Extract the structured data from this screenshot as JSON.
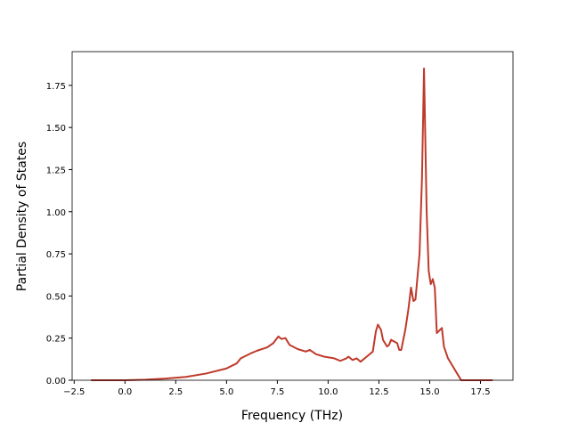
{
  "chart_data": {
    "type": "line",
    "xlabel": "Frequency (THz)",
    "ylabel": "Partial Density of States",
    "x": [
      -1.67,
      0,
      1,
      2,
      3,
      4,
      5,
      5.5,
      5.7,
      6.2,
      6.5,
      7,
      7.3,
      7.55,
      7.7,
      7.9,
      8.1,
      8.5,
      8.9,
      9.1,
      9.4,
      9.8,
      10.3,
      10.6,
      10.9,
      11.0,
      11.2,
      11.4,
      11.6,
      11.9,
      12.2,
      12.35,
      12.45,
      12.6,
      12.7,
      12.9,
      13.0,
      13.1,
      13.4,
      13.5,
      13.6,
      13.8,
      13.95,
      14.08,
      14.2,
      14.3,
      14.5,
      14.62,
      14.72,
      14.85,
      14.95,
      15.05,
      15.15,
      15.25,
      15.35,
      15.6,
      15.7,
      15.9,
      16.2,
      16.4,
      16.55,
      18.1
    ],
    "series": [
      {
        "color": "#bf3a2b",
        "values": [
          0,
          0,
          0.003,
          0.01,
          0.02,
          0.04,
          0.07,
          0.1,
          0.13,
          0.16,
          0.175,
          0.195,
          0.22,
          0.26,
          0.245,
          0.25,
          0.21,
          0.185,
          0.17,
          0.18,
          0.155,
          0.14,
          0.13,
          0.115,
          0.13,
          0.14,
          0.12,
          0.13,
          0.11,
          0.14,
          0.17,
          0.29,
          0.33,
          0.3,
          0.24,
          0.2,
          0.21,
          0.24,
          0.22,
          0.18,
          0.18,
          0.3,
          0.42,
          0.55,
          0.47,
          0.48,
          0.75,
          1.2,
          1.85,
          1.0,
          0.65,
          0.57,
          0.6,
          0.55,
          0.28,
          0.31,
          0.2,
          0.13,
          0.07,
          0.03,
          0,
          0
        ]
      }
    ],
    "xlim": [
      -2.6,
      19.1
    ],
    "ylim": [
      0,
      1.95
    ],
    "xticks": [
      {
        "value": -2.5,
        "label": "−2.5"
      },
      {
        "value": 0,
        "label": "0.0"
      },
      {
        "value": 2.5,
        "label": "2.5"
      },
      {
        "value": 5,
        "label": "5.0"
      },
      {
        "value": 7.5,
        "label": "7.5"
      },
      {
        "value": 10,
        "label": "10.0"
      },
      {
        "value": 12.5,
        "label": "12.5"
      },
      {
        "value": 15,
        "label": "15.0"
      },
      {
        "value": 17.5,
        "label": "17.5"
      }
    ],
    "yticks": [
      {
        "value": 0,
        "label": "0.00"
      },
      {
        "value": 0.25,
        "label": "0.25"
      },
      {
        "value": 0.5,
        "label": "0.50"
      },
      {
        "value": 0.75,
        "label": "0.75"
      },
      {
        "value": 1,
        "label": "1.00"
      },
      {
        "value": 1.25,
        "label": "1.25"
      },
      {
        "value": 1.5,
        "label": "1.50"
      },
      {
        "value": 1.75,
        "label": "1.75"
      }
    ]
  }
}
